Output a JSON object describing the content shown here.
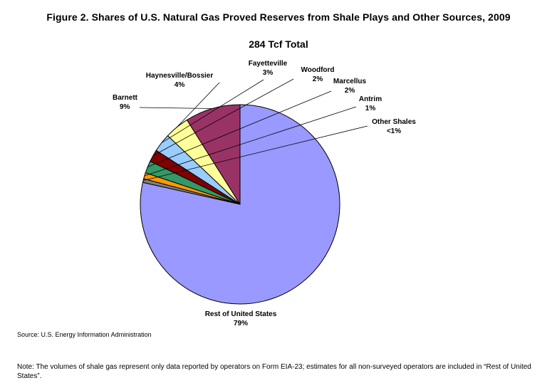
{
  "figure_title": "Figure 2. Shares of U.S. Natural Gas Proved Reserves from Shale Plays and Other Sources, 2009",
  "source": "Source: U.S. Energy Information Administration",
  "note": "Note:  The volumes of shale gas represent only data reported by operators on Form EIA-23; estimates for all non-surveyed operators are included in “Rest of United States”.",
  "chart_data": {
    "type": "pie",
    "title": "284 Tcf Total",
    "slices": [
      {
        "name": "Barnett",
        "value": 9,
        "label": "9%",
        "color": "#993366"
      },
      {
        "name": "Haynesville/Bossier",
        "value": 4,
        "label": "4%",
        "color": "#FFFF99"
      },
      {
        "name": "Fayetteville",
        "value": 3,
        "label": "3%",
        "color": "#99CCFF"
      },
      {
        "name": "Woodford",
        "value": 2,
        "label": "2%",
        "color": "#800000"
      },
      {
        "name": "Marcellus",
        "value": 2,
        "label": "2%",
        "color": "#339966"
      },
      {
        "name": "Antrim",
        "value": 1,
        "label": "1%",
        "color": "#FF9900"
      },
      {
        "name": "Other Shales",
        "value": 0.6,
        "label": "<1%",
        "color": "#808080"
      },
      {
        "name": "Rest of United States",
        "value": 79,
        "label": "79%",
        "color": "#9999FF"
      }
    ]
  }
}
